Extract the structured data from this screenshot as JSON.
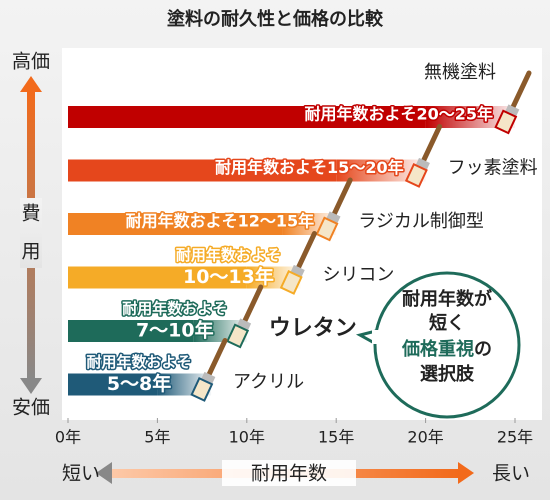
{
  "chart_data": {
    "type": "range-bar",
    "title": "塗料の耐久性と価格の比較",
    "categories": [
      "無機塗料",
      "フッ素塗料",
      "ラジカル制御型",
      "シリコン",
      "ウレタン",
      "アクリル"
    ],
    "low": [
      20,
      15,
      12,
      10,
      7,
      5
    ],
    "high": [
      25,
      20,
      15,
      13,
      10,
      8
    ],
    "value_labels": [
      [
        "耐用年数およそ20〜25年"
      ],
      [
        "耐用年数およそ15〜20年"
      ],
      [
        "耐用年数およそ12〜15年"
      ],
      [
        "耐用年数およそ",
        "10〜13年"
      ],
      [
        "耐用年数およそ",
        "7〜10年"
      ],
      [
        "耐用年数およそ",
        "5〜8年"
      ]
    ],
    "colors": [
      "#c00000",
      "#e5471c",
      "#f08224",
      "#f5ab27",
      "#1e6b5a",
      "#1f5a78"
    ],
    "xlim": [
      0,
      25
    ],
    "xticks": [
      {
        "value": 0,
        "label": "0年"
      },
      {
        "value": 5,
        "label": "5年"
      },
      {
        "value": 10,
        "label": "10年"
      },
      {
        "value": 15,
        "label": "15年"
      },
      {
        "value": 20,
        "label": "20年"
      },
      {
        "value": 25,
        "label": "25年"
      }
    ],
    "y_axis": {
      "top": "高価",
      "label": [
        "費",
        "用"
      ],
      "bottom": "安価"
    },
    "x_axis": {
      "left": "短い",
      "label": "耐用年数",
      "right": "長い"
    },
    "callout": {
      "lines": [
        "耐用年数が",
        "短く"
      ],
      "highlight": "価格重視",
      "suffix": "の",
      "last": "選択肢"
    }
  }
}
